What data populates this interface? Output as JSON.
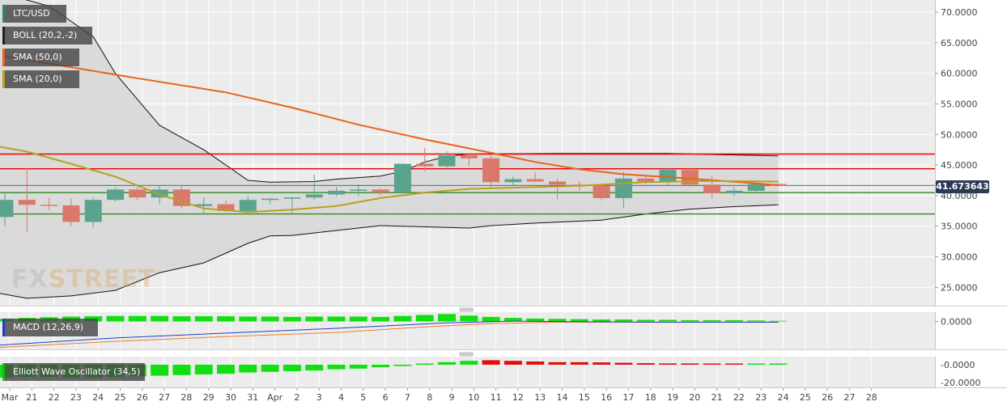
{
  "legend": {
    "symbol": "LTC/USD",
    "boll": "BOLL (20,2,-2)",
    "sma50": "SMA (50,0)",
    "sma20": "SMA (20,0)",
    "macd": "MACD (12,26,9)",
    "ewo": "Elliott Wave Oscillator (34,5)"
  },
  "watermark": {
    "fx": "FX",
    "street": "STREET"
  },
  "current_price": "41.673643",
  "colors": {
    "up": "#5aa38d",
    "down": "#d9796a",
    "sma50": "#e8631a",
    "sma20": "#b5a21f",
    "resistance": "#e60000",
    "support": "#2f8a1f",
    "macd": "#1f3fbf",
    "signal": "#ee7f2a",
    "hist_green": "#10e010",
    "hist_red": "#e01010",
    "boll_fill": "#d8d8d8"
  },
  "chart_data": [
    {
      "type": "candlestick",
      "panel": "price",
      "x_ticks": [
        "Mar",
        "21",
        "22",
        "23",
        "24",
        "25",
        "26",
        "27",
        "28",
        "29",
        "30",
        "31",
        "Apr",
        "2",
        "3",
        "4",
        "5",
        "6",
        "7",
        "8",
        "9",
        "10",
        "11",
        "12",
        "13",
        "14",
        "15",
        "16",
        "17",
        "18",
        "19",
        "20",
        "21",
        "22",
        "23",
        "24",
        "25",
        "26",
        "27",
        "28"
      ],
      "ylim": [
        22,
        72
      ],
      "y_ticks": [
        "25.0000",
        "30.0000",
        "35.0000",
        "40.0000",
        "45.0000",
        "50.0000",
        "55.0000",
        "60.0000",
        "65.0000",
        "70.0000"
      ],
      "y_tick_values": [
        25,
        30,
        35,
        40,
        45,
        50,
        55,
        60,
        65,
        70
      ],
      "candles": [
        {
          "o": 36.5,
          "h": 40.5,
          "l": 35.0,
          "c": 39.3
        },
        {
          "o": 39.3,
          "h": 44.5,
          "l": 34.0,
          "c": 38.5
        },
        {
          "o": 38.5,
          "h": 39.6,
          "l": 37.6,
          "c": 38.4
        },
        {
          "o": 38.4,
          "h": 39.5,
          "l": 35.0,
          "c": 35.7
        },
        {
          "o": 35.7,
          "h": 39.8,
          "l": 34.8,
          "c": 39.3
        },
        {
          "o": 39.3,
          "h": 41.3,
          "l": 39.0,
          "c": 41.0
        },
        {
          "o": 41.0,
          "h": 41.5,
          "l": 39.3,
          "c": 39.7
        },
        {
          "o": 39.7,
          "h": 41.6,
          "l": 38.6,
          "c": 41.0
        },
        {
          "o": 41.0,
          "h": 41.7,
          "l": 37.9,
          "c": 38.3
        },
        {
          "o": 38.3,
          "h": 39.7,
          "l": 36.9,
          "c": 38.6
        },
        {
          "o": 38.6,
          "h": 39.2,
          "l": 37.3,
          "c": 37.5
        },
        {
          "o": 37.5,
          "h": 39.9,
          "l": 37.2,
          "c": 39.3
        },
        {
          "o": 39.3,
          "h": 39.6,
          "l": 38.6,
          "c": 39.5
        },
        {
          "o": 39.5,
          "h": 39.8,
          "l": 37.1,
          "c": 39.7
        },
        {
          "o": 39.7,
          "h": 43.4,
          "l": 39.3,
          "c": 40.2
        },
        {
          "o": 40.2,
          "h": 41.4,
          "l": 39.9,
          "c": 40.8
        },
        {
          "o": 40.8,
          "h": 41.8,
          "l": 39.9,
          "c": 41.0
        },
        {
          "o": 41.0,
          "h": 41.2,
          "l": 40.0,
          "c": 40.5
        },
        {
          "o": 40.5,
          "h": 45.2,
          "l": 40.3,
          "c": 45.2
        },
        {
          "o": 45.2,
          "h": 47.8,
          "l": 44.0,
          "c": 44.8
        },
        {
          "o": 44.8,
          "h": 47.3,
          "l": 44.6,
          "c": 46.6
        },
        {
          "o": 46.6,
          "h": 47.0,
          "l": 44.8,
          "c": 46.1
        },
        {
          "o": 46.1,
          "h": 46.5,
          "l": 41.2,
          "c": 42.2
        },
        {
          "o": 42.2,
          "h": 43.1,
          "l": 41.6,
          "c": 42.7
        },
        {
          "o": 42.7,
          "h": 43.8,
          "l": 42.2,
          "c": 42.3
        },
        {
          "o": 42.3,
          "h": 42.8,
          "l": 39.4,
          "c": 41.8
        },
        {
          "o": 41.8,
          "h": 42.3,
          "l": 40.8,
          "c": 41.6
        },
        {
          "o": 41.6,
          "h": 41.9,
          "l": 39.2,
          "c": 39.6
        },
        {
          "o": 39.6,
          "h": 43.9,
          "l": 38.0,
          "c": 42.8
        },
        {
          "o": 42.8,
          "h": 43.4,
          "l": 41.9,
          "c": 42.3
        },
        {
          "o": 42.3,
          "h": 44.5,
          "l": 41.6,
          "c": 44.2
        },
        {
          "o": 44.2,
          "h": 44.5,
          "l": 41.4,
          "c": 41.8
        },
        {
          "o": 41.8,
          "h": 43.2,
          "l": 39.5,
          "c": 40.4
        },
        {
          "o": 40.4,
          "h": 41.4,
          "l": 40.0,
          "c": 40.8
        },
        {
          "o": 40.8,
          "h": 42.0,
          "l": 40.4,
          "c": 41.9
        },
        {
          "o": 41.9,
          "h": 42.0,
          "l": 41.5,
          "c": 41.67
        }
      ],
      "sma50": [
        [
          0,
          62.8
        ],
        [
          6,
          59.2
        ],
        [
          10,
          56.9
        ],
        [
          13,
          54.4
        ],
        [
          16,
          51.6
        ],
        [
          19,
          49.2
        ],
        [
          22,
          47.0
        ],
        [
          24,
          45.5
        ],
        [
          26,
          44.3
        ],
        [
          28,
          43.5
        ],
        [
          31,
          42.8
        ],
        [
          34,
          42.0
        ],
        [
          35,
          41.7
        ]
      ],
      "sma20": [
        [
          -1,
          48.5
        ],
        [
          1,
          47.2
        ],
        [
          3,
          45.2
        ],
        [
          5,
          43.1
        ],
        [
          7,
          40.2
        ],
        [
          9,
          37.9
        ],
        [
          11,
          37.3
        ],
        [
          13,
          37.7
        ],
        [
          15,
          38.3
        ],
        [
          17,
          39.6
        ],
        [
          19,
          40.5
        ],
        [
          21,
          41.1
        ],
        [
          23,
          41.3
        ],
        [
          26,
          41.6
        ],
        [
          29,
          42.2
        ],
        [
          32,
          42.4
        ],
        [
          35,
          42.3
        ]
      ],
      "boll_upper": [
        [
          -1,
          74
        ],
        [
          2,
          71
        ],
        [
          4,
          66
        ],
        [
          5,
          60
        ],
        [
          7,
          51.5
        ],
        [
          9,
          47.5
        ],
        [
          11,
          42.5
        ],
        [
          12,
          42.2
        ],
        [
          14,
          42.3
        ],
        [
          15,
          42.7
        ],
        [
          17,
          43.2
        ],
        [
          18,
          44.0
        ],
        [
          19,
          45.5
        ],
        [
          20,
          46.4
        ],
        [
          21,
          46.8
        ],
        [
          25,
          46.9
        ],
        [
          30,
          46.9
        ],
        [
          35,
          46.5
        ]
      ],
      "boll_lower": [
        [
          -1,
          24.5
        ],
        [
          1,
          23.2
        ],
        [
          3,
          23.6
        ],
        [
          5,
          24.5
        ],
        [
          7,
          27.4
        ],
        [
          9,
          29.0
        ],
        [
          10,
          30.6
        ],
        [
          11,
          32.2
        ],
        [
          12,
          33.4
        ],
        [
          13,
          33.5
        ],
        [
          15,
          34.3
        ],
        [
          17,
          35.1
        ],
        [
          19,
          34.9
        ],
        [
          21,
          34.7
        ],
        [
          22,
          35.1
        ],
        [
          24,
          35.5
        ],
        [
          27,
          36.0
        ],
        [
          29,
          37.0
        ],
        [
          31,
          37.8
        ],
        [
          33,
          38.2
        ],
        [
          35,
          38.5
        ]
      ],
      "resistance_levels": [
        46.8,
        44.4
      ],
      "support_levels": [
        40.5,
        37.0
      ],
      "current_price": 41.673643
    },
    {
      "type": "bar+line",
      "panel": "macd",
      "y_ticks": [
        "0.0000"
      ],
      "histogram": [
        0.4,
        0.55,
        0.65,
        0.75,
        0.8,
        0.85,
        0.85,
        0.85,
        0.8,
        0.8,
        0.8,
        0.75,
        0.75,
        0.7,
        0.75,
        0.75,
        0.75,
        0.7,
        0.85,
        1.0,
        1.15,
        0.9,
        0.7,
        0.55,
        0.45,
        0.4,
        0.35,
        0.3,
        0.3,
        0.25,
        0.25,
        0.2,
        0.2,
        0.2,
        0.15,
        0.1
      ],
      "macd_line": [
        [
          -1,
          -3.6
        ],
        [
          5,
          -2.4
        ],
        [
          10,
          -1.7
        ],
        [
          15,
          -1.0
        ],
        [
          20,
          -0.2
        ],
        [
          23,
          0.05
        ],
        [
          26,
          -0.05
        ],
        [
          30,
          -0.1
        ],
        [
          35,
          -0.1
        ]
      ],
      "signal_line": [
        [
          -1,
          -3.9
        ],
        [
          5,
          -2.9
        ],
        [
          10,
          -2.2
        ],
        [
          15,
          -1.6
        ],
        [
          19,
          -0.8
        ],
        [
          22,
          -0.3
        ],
        [
          25,
          -0.1
        ],
        [
          30,
          -0.1
        ],
        [
          35,
          -0.1
        ]
      ]
    },
    {
      "type": "bar",
      "panel": "ewo",
      "y_ticks": [
        "-0.0000",
        "-20.0000"
      ],
      "values": [
        -1.0,
        -0.95,
        -0.95,
        -1.0,
        -1.0,
        -0.95,
        -0.9,
        -0.85,
        -0.8,
        -0.75,
        -0.7,
        -0.6,
        -0.55,
        -0.5,
        -0.45,
        -0.35,
        -0.3,
        -0.2,
        -0.1,
        0.05,
        0.2,
        0.3,
        0.35,
        0.3,
        0.25,
        0.2,
        0.2,
        0.18,
        0.15,
        0.12,
        0.1,
        0.1,
        0.08,
        0.07,
        0.05,
        0.02
      ]
    }
  ]
}
